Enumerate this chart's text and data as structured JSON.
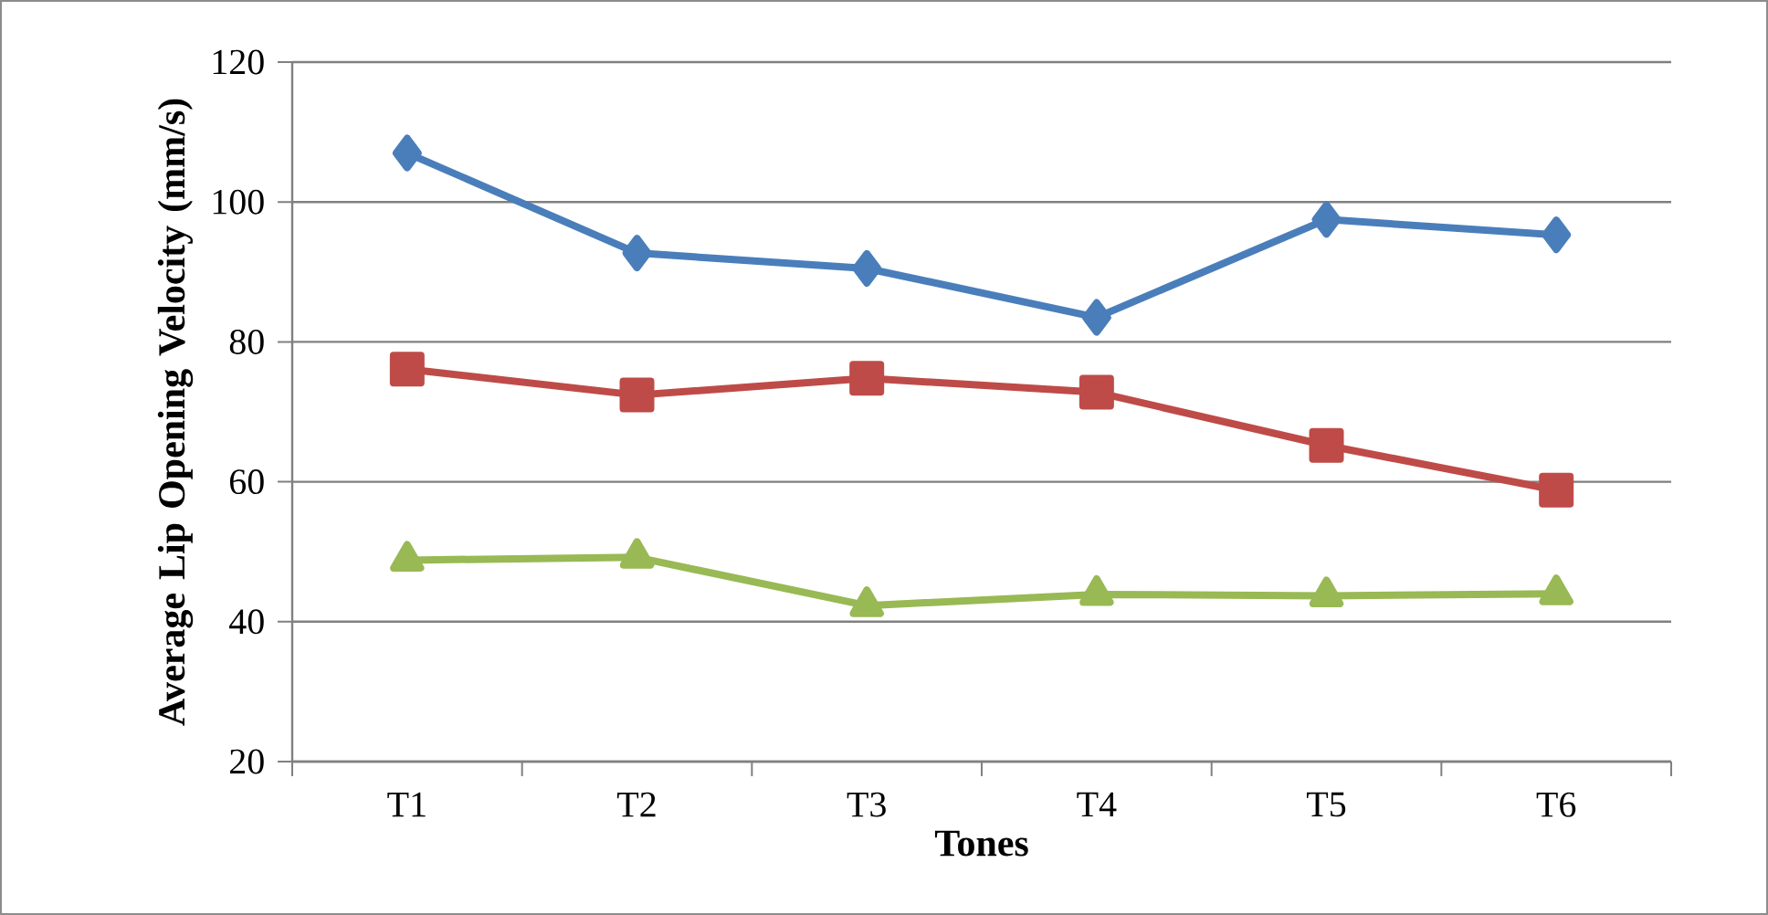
{
  "chart_data": {
    "type": "line",
    "xlabel": "Tones",
    "ylabel": "Average Lip Opening Velocity (mm/s)",
    "categories": [
      "T1",
      "T2",
      "T3",
      "T4",
      "T5",
      "T6"
    ],
    "ylim": [
      20,
      120
    ],
    "yticks": [
      20,
      40,
      60,
      80,
      100,
      120
    ],
    "grid": "y",
    "series": [
      {
        "color": "#4a7ebb",
        "marker": "diamond",
        "values": [
          107.0,
          92.7,
          90.5,
          83.5,
          97.5,
          95.3
        ]
      },
      {
        "color": "#be4b48",
        "marker": "square",
        "values": [
          76.1,
          72.4,
          74.8,
          72.8,
          65.2,
          58.8
        ]
      },
      {
        "color": "#98b954",
        "marker": "triangle",
        "values": [
          48.8,
          49.2,
          42.3,
          43.9,
          43.7,
          44.0
        ]
      }
    ]
  }
}
